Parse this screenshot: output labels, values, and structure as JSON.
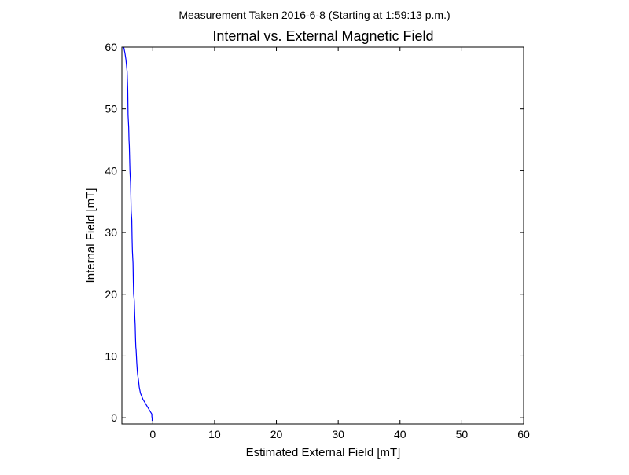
{
  "suptitle": "Measurement Taken 2016-6-8 (Starting at 1:59:13 p.m.)",
  "chart_data": {
    "type": "line",
    "title": "Internal vs. External Magnetic Field",
    "xlabel": "Estimated External Field [mT]",
    "ylabel": "Internal Field [mT]",
    "xlim": [
      -5,
      60
    ],
    "ylim": [
      -1,
      60
    ],
    "xticks": [
      0,
      10,
      20,
      30,
      40,
      50,
      60
    ],
    "yticks": [
      0,
      10,
      20,
      30,
      40,
      50,
      60
    ],
    "grid": false,
    "series": [
      {
        "color": "#0000ff",
        "x": [
          -0.1,
          -0.1,
          -0.15,
          -0.15,
          -0.4,
          -0.7,
          -1.0,
          -1.3,
          -1.6,
          -1.8,
          -2.0,
          -2.2,
          -2.3,
          -2.45,
          -2.5,
          -2.6,
          -2.7,
          -2.75,
          -2.8,
          -2.85,
          -2.9,
          -3.0,
          -3.1,
          -3.15,
          -3.2,
          -3.3,
          -3.35,
          -3.4,
          -3.5,
          -3.55,
          -3.6,
          -3.7,
          -3.8,
          -3.85,
          -3.9,
          -4.0,
          -4.05,
          -4.15,
          -4.25,
          -4.35,
          -4.5,
          -4.6,
          -4.7
        ],
        "y": [
          -0.5,
          -0.1,
          0.2,
          0.6,
          1.0,
          1.5,
          2.0,
          2.5,
          3.0,
          3.5,
          4.0,
          5.0,
          6.0,
          7.0,
          7.5,
          9.0,
          11.0,
          11.5,
          13.0,
          15.0,
          16.0,
          19.0,
          20.0,
          22.0,
          25.0,
          27.0,
          29.0,
          32.0,
          33.5,
          36.0,
          38.0,
          40.0,
          44.0,
          45.0,
          47.0,
          49.0,
          53.0,
          56.0,
          57.0,
          58.0,
          59.0,
          59.5,
          60.0
        ]
      }
    ]
  }
}
